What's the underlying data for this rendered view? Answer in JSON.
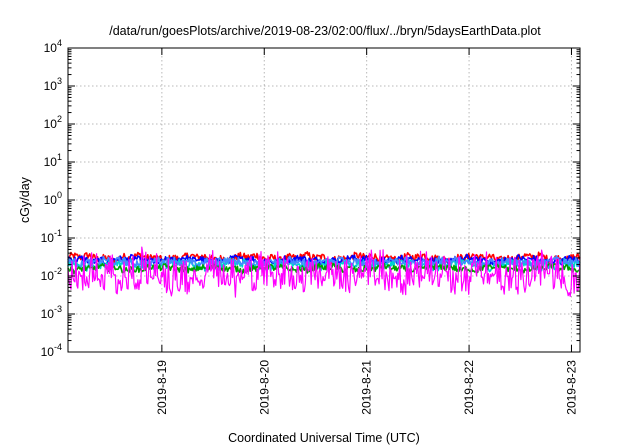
{
  "chart_data": {
    "type": "line",
    "title": "/data/run/goesPlots/archive/2019-08-23/02:00/flux/../bryn/5daysEarthData.plot",
    "xlabel": "Coordinated Universal Time (UTC)",
    "ylabel": "cGy/day",
    "y_scale": "log",
    "ylim_exponents": [
      -4,
      4
    ],
    "y_tick_base": "10",
    "y_tick_exponents": [
      "-4",
      "-3",
      "-2",
      "-1",
      "0",
      "1",
      "2",
      "3",
      "4"
    ],
    "xlim_days": [
      "2019-08-18 02:00",
      "2019-08-23 02:00"
    ],
    "x_ticks": [
      "2019-8-19",
      "2019-8-20",
      "2019-8-21",
      "2019-8-22",
      "2019-8-23"
    ],
    "grid": true,
    "legend": "none",
    "series": [
      {
        "color": "#ff0000",
        "typical_log10": -1.52,
        "spread_log10": 0.12
      },
      {
        "color": "#0000ff",
        "typical_log10": -1.58,
        "spread_log10": 0.11
      },
      {
        "color": "#00d0d0",
        "typical_log10": -1.7,
        "spread_log10": 0.14
      },
      {
        "color": "#4488ff",
        "typical_log10": -1.63,
        "spread_log10": 0.12
      },
      {
        "color": "#00a000",
        "typical_log10": -1.8,
        "spread_log10": 0.1
      },
      {
        "color": "#ff00ff",
        "typical_log10": -2.15,
        "spread_log10": 0.3
      }
    ]
  }
}
